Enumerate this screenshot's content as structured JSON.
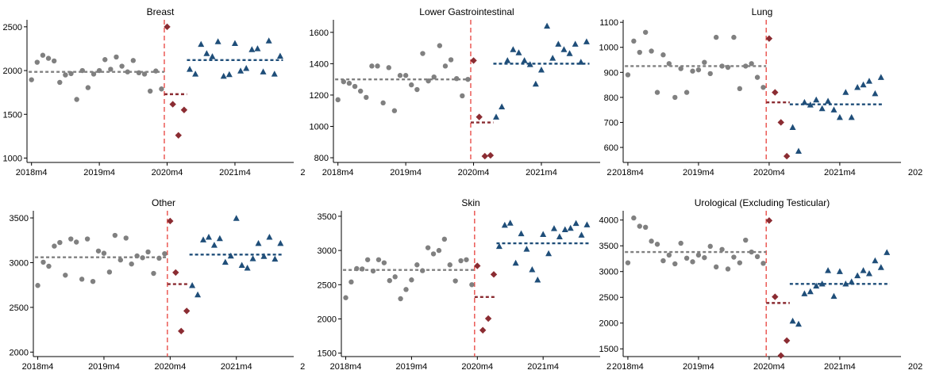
{
  "colors": {
    "pre": "#808080",
    "covid": "#8b2c32",
    "post": "#1f4e79",
    "cutoff": "#e8413c",
    "axis": "#000000"
  },
  "chart_data": [
    {
      "type": "scatter",
      "title": "Breast",
      "x_ticks": [
        "2018m4",
        "2019m4",
        "2020m4",
        "2021m4",
        "2"
      ],
      "ylim": [
        950,
        2580
      ],
      "y_ticks": [
        1000,
        1500,
        2000,
        2500
      ],
      "series": [
        {
          "role": "pre",
          "marker": "circle",
          "y": [
            1895,
            2095,
            2175,
            2140,
            2110,
            1865,
            1950,
            1965,
            1670,
            2000,
            1805,
            1960,
            2000,
            2125,
            2015,
            2155,
            2050,
            1985,
            2115,
            1975,
            1960,
            1765,
            1995,
            1790
          ]
        },
        {
          "role": "covid",
          "marker": "diamond",
          "y": [
            2500,
            1615,
            1260,
            1550
          ]
        },
        {
          "role": "post",
          "marker": "triangle",
          "y": [
            2015,
            1960,
            2300,
            2195,
            2160,
            2330,
            1935,
            1955,
            2310,
            1995,
            2025,
            2240,
            2250,
            1985,
            2340,
            1960,
            2165
          ]
        }
      ],
      "means": {
        "pre": 1985,
        "covid": 1730,
        "post": 2120
      }
    },
    {
      "type": "scatter",
      "title": "Lower Gastrointestinal",
      "x_ticks": [
        "2018m4",
        "2019m4",
        "2020m4",
        "2021m4",
        "2"
      ],
      "ylim": [
        770,
        1680
      ],
      "y_ticks": [
        800,
        1000,
        1200,
        1400,
        1600
      ],
      "series": [
        {
          "role": "pre",
          "marker": "circle",
          "y": [
            1170,
            1285,
            1275,
            1255,
            1225,
            1185,
            1385,
            1385,
            1150,
            1375,
            1100,
            1325,
            1325,
            1265,
            1235,
            1465,
            1290,
            1315,
            1515,
            1385,
            1425,
            1305,
            1195,
            1300
          ]
        },
        {
          "role": "covid",
          "marker": "diamond",
          "y": [
            1420,
            1060,
            810,
            815
          ]
        },
        {
          "role": "post",
          "marker": "triangle",
          "y": [
            1060,
            1125,
            1420,
            1490,
            1470,
            1420,
            1395,
            1270,
            1360,
            1640,
            1435,
            1525,
            1490,
            1465,
            1525,
            1410,
            1540
          ]
        }
      ],
      "means": {
        "pre": 1300,
        "covid": 1025,
        "post": 1400
      }
    },
    {
      "type": "scatter",
      "title": "Lung",
      "x_ticks": [
        "2018m4",
        "2019m4",
        "2020m4",
        "2021m4",
        "202"
      ],
      "ylim": [
        540,
        1110
      ],
      "y_ticks": [
        600,
        700,
        800,
        900,
        1000,
        1100
      ],
      "series": [
        {
          "role": "pre",
          "marker": "circle",
          "y": [
            890,
            1025,
            980,
            1060,
            985,
            820,
            970,
            935,
            800,
            915,
            820,
            905,
            910,
            940,
            895,
            1040,
            925,
            920,
            1040,
            835,
            925,
            935,
            880,
            840
          ]
        },
        {
          "role": "covid",
          "marker": "diamond",
          "y": [
            1035,
            820,
            700,
            565
          ]
        },
        {
          "role": "post",
          "marker": "triangle",
          "y": [
            680,
            585,
            780,
            770,
            790,
            755,
            785,
            750,
            720,
            820,
            720,
            840,
            850,
            865,
            815,
            880
          ]
        }
      ],
      "means": {
        "pre": 925,
        "covid": 780,
        "post": 772
      }
    },
    {
      "type": "scatter",
      "title": "Other",
      "x_ticks": [
        "2018m4",
        "2019m4",
        "2020m4",
        "2021m4",
        "2"
      ],
      "ylim": [
        1950,
        3580
      ],
      "y_ticks": [
        2000,
        2500,
        3000,
        3500
      ],
      "series": [
        {
          "role": "pre",
          "marker": "circle",
          "y": [
            2745,
            3005,
            2960,
            3185,
            3225,
            2860,
            3265,
            3230,
            2815,
            3265,
            2790,
            3130,
            3105,
            2895,
            3305,
            3030,
            3275,
            2985,
            3075,
            3055,
            3120,
            2880,
            3050,
            3100
          ]
        },
        {
          "role": "covid",
          "marker": "diamond",
          "y": [
            3465,
            2890,
            2235,
            2460
          ]
        },
        {
          "role": "post",
          "marker": "triangle",
          "y": [
            2745,
            2640,
            3255,
            3285,
            3195,
            3270,
            3005,
            3075,
            3495,
            2970,
            2940,
            3045,
            3215,
            3070,
            3285,
            3040,
            3215
          ]
        }
      ],
      "means": {
        "pre": 3060,
        "covid": 2760,
        "post": 3090
      }
    },
    {
      "type": "scatter",
      "title": "Skin",
      "x_ticks": [
        "2018m4",
        "2019m4",
        "2020m4",
        "2021m4",
        "2"
      ],
      "ylim": [
        1450,
        3580
      ],
      "y_ticks": [
        1500,
        2000,
        2500,
        3000,
        3500
      ],
      "series": [
        {
          "role": "pre",
          "marker": "circle",
          "y": [
            2310,
            2540,
            2735,
            2730,
            2865,
            2700,
            2865,
            2820,
            2560,
            2615,
            2295,
            2430,
            2570,
            2790,
            2705,
            3040,
            2950,
            3000,
            3165,
            2790,
            2555,
            2850,
            2865,
            2500
          ]
        },
        {
          "role": "covid",
          "marker": "diamond",
          "y": [
            2775,
            1835,
            2005,
            2650
          ]
        },
        {
          "role": "post",
          "marker": "triangle",
          "y": [
            3060,
            3370,
            3400,
            2815,
            3245,
            3020,
            2720,
            2570,
            3235,
            2955,
            3320,
            3200,
            3305,
            3325,
            3395,
            3225,
            3375
          ]
        }
      ],
      "means": {
        "pre": 2715,
        "covid": 2320,
        "post": 3105
      }
    },
    {
      "type": "scatter",
      "title": "Urological (Excluding Testicular)",
      "x_ticks": [
        "2018m4",
        "2019m4",
        "2020m4",
        "2021m4",
        "202"
      ],
      "ylim": [
        1350,
        4180
      ],
      "y_ticks": [
        1500,
        2000,
        2500,
        3000,
        3500,
        4000
      ],
      "series": [
        {
          "role": "pre",
          "marker": "circle",
          "y": [
            3170,
            4040,
            3880,
            3860,
            3590,
            3530,
            3210,
            3320,
            3150,
            3550,
            3260,
            3190,
            3320,
            3270,
            3490,
            3090,
            3430,
            3050,
            3280,
            3170,
            3610,
            3380,
            3290,
            3160
          ]
        },
        {
          "role": "covid",
          "marker": "diamond",
          "y": [
            3990,
            2510,
            1370,
            1660
          ]
        },
        {
          "role": "post",
          "marker": "triangle",
          "y": [
            2040,
            1980,
            2570,
            2610,
            2720,
            2760,
            3020,
            2520,
            3000,
            2760,
            2800,
            2920,
            3020,
            2960,
            3210,
            3080,
            3370
          ]
        }
      ],
      "means": {
        "pre": 3380,
        "covid": 2390,
        "post": 2760
      }
    }
  ]
}
